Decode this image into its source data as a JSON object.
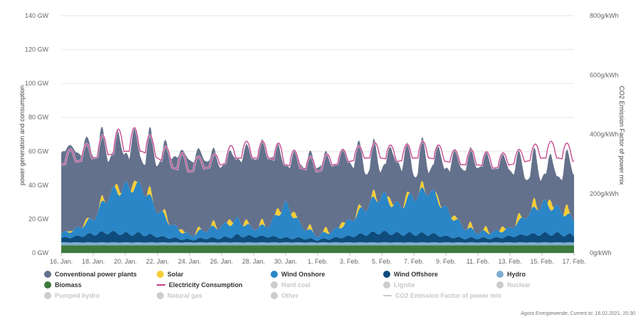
{
  "chart_data": {
    "type": "area",
    "xlabel": "",
    "ylabel": "power generation and consumption",
    "ylabel_right": "CO2 Emission Factor of power mix",
    "ylim": [
      0,
      140
    ],
    "ylim_right": [
      0,
      800
    ],
    "yticks": [
      "0 GW",
      "20 GW",
      "40 GW",
      "60 GW",
      "80 GW",
      "100 GW",
      "120 GW",
      "140 GW"
    ],
    "yticks_right": [
      "0g/kWh",
      "200g/kWh",
      "400g/kWh",
      "600g/kWh",
      "800g/kWh"
    ],
    "x_labels": [
      "16. Jan.",
      "18. Jan.",
      "20. Jan.",
      "22. Jan.",
      "24. Jan.",
      "26. Jan.",
      "28. Jan.",
      "30. Jan.",
      "1. Feb.",
      "3. Feb.",
      "5. Feb.",
      "7. Feb.",
      "9. Feb.",
      "11. Feb.",
      "13. Feb.",
      "15. Feb.",
      "17. Feb."
    ],
    "x_days": [
      0,
      2,
      4,
      6,
      8,
      10,
      12,
      14,
      16,
      18,
      20,
      22,
      24,
      26,
      28,
      30,
      32
    ],
    "x_range_days": [
      0,
      32
    ],
    "days": [
      0,
      1,
      2,
      3,
      4,
      5,
      6,
      7,
      8,
      9,
      10,
      11,
      12,
      13,
      14,
      15,
      16,
      17,
      18,
      19,
      20,
      21,
      22,
      23,
      24,
      25,
      26,
      27,
      28,
      29,
      30,
      31,
      32
    ],
    "grid": true,
    "stacking": "normal",
    "series": [
      {
        "name": "Biomass",
        "color": "#3d7a3d",
        "peak": [
          4.5,
          4.5,
          4.5,
          4.5,
          4.5,
          4.5,
          4.5,
          4.5,
          4.5,
          4.5,
          4.5,
          4.5,
          4.5,
          4.5,
          4.5,
          4.5,
          4.5,
          4.5,
          4.5,
          4.5,
          4.5,
          4.5,
          4.5,
          4.5,
          4.5,
          4.5,
          4.5,
          4.5,
          4.5,
          4.5,
          4.5,
          4.5,
          4.5
        ],
        "trough": [
          4.5,
          4.5,
          4.5,
          4.5,
          4.5,
          4.5,
          4.5,
          4.5,
          4.5,
          4.5,
          4.5,
          4.5,
          4.5,
          4.5,
          4.5,
          4.5,
          4.5,
          4.5,
          4.5,
          4.5,
          4.5,
          4.5,
          4.5,
          4.5,
          4.5,
          4.5,
          4.5,
          4.5,
          4.5,
          4.5,
          4.5,
          4.5,
          4.5
        ]
      },
      {
        "name": "Hydro",
        "color": "#7fadd0",
        "peak": [
          1.8,
          1.8,
          1.8,
          1.8,
          1.8,
          1.8,
          1.8,
          1.8,
          1.8,
          1.8,
          1.8,
          1.8,
          1.8,
          1.8,
          1.8,
          1.8,
          1.8,
          1.8,
          1.8,
          1.8,
          1.8,
          1.8,
          1.8,
          1.8,
          1.8,
          1.8,
          1.8,
          1.8,
          1.8,
          1.8,
          1.8,
          1.8,
          1.8
        ],
        "trough": [
          1.6,
          1.6,
          1.6,
          1.6,
          1.6,
          1.6,
          1.6,
          1.6,
          1.6,
          1.6,
          1.6,
          1.6,
          1.6,
          1.6,
          1.6,
          1.6,
          1.6,
          1.6,
          1.6,
          1.6,
          1.6,
          1.6,
          1.6,
          1.6,
          1.6,
          1.6,
          1.6,
          1.6,
          1.6,
          1.6,
          1.6,
          1.6,
          1.6
        ]
      },
      {
        "name": "Wind Offshore",
        "color": "#0e4c7d",
        "peak": [
          3,
          4,
          6,
          7,
          6,
          6,
          4,
          3,
          2,
          3,
          3,
          5,
          4,
          4,
          3,
          3,
          2,
          3,
          4,
          6,
          7,
          6,
          6,
          6,
          4,
          3,
          3,
          3,
          4,
          5,
          6,
          6,
          5
        ],
        "trough": [
          2,
          3,
          4,
          5,
          4,
          4,
          3,
          2,
          1,
          2,
          2,
          3,
          3,
          3,
          2,
          2,
          1,
          2,
          3,
          4,
          5,
          4,
          4,
          4,
          3,
          2,
          2,
          2,
          3,
          4,
          4,
          4,
          3
        ]
      },
      {
        "name": "Wind Onshore",
        "color": "#2a86c7",
        "peak": [
          3,
          5,
          10,
          25,
          30,
          30,
          18,
          8,
          3,
          6,
          8,
          10,
          5,
          8,
          22,
          8,
          3,
          5,
          10,
          18,
          24,
          18,
          25,
          28,
          18,
          8,
          4,
          4,
          5,
          12,
          20,
          16,
          10
        ],
        "trough": [
          2,
          4,
          8,
          20,
          25,
          26,
          14,
          6,
          2,
          4,
          6,
          8,
          4,
          6,
          18,
          6,
          2,
          4,
          8,
          14,
          20,
          14,
          20,
          24,
          14,
          6,
          3,
          3,
          4,
          10,
          16,
          14,
          8
        ]
      },
      {
        "name": "Solar",
        "color": "#f5cd36",
        "peak": [
          0,
          2,
          3,
          4,
          6,
          5,
          5,
          3,
          2,
          3,
          4,
          4,
          3,
          4,
          5,
          3,
          3,
          4,
          3,
          4,
          5,
          4,
          5,
          3,
          3,
          3,
          4,
          3,
          4,
          5,
          6,
          6,
          7
        ],
        "trough": [
          0,
          0,
          0,
          0,
          0,
          0,
          0,
          0,
          0,
          0,
          0,
          0,
          0,
          0,
          0,
          0,
          0,
          0,
          0,
          0,
          0,
          0,
          0,
          0,
          0,
          0,
          0,
          0,
          0,
          0,
          0,
          0,
          0
        ]
      },
      {
        "name": "Conventional power plants",
        "color": "#64718c",
        "peak": [
          52,
          50,
          47,
          35,
          31,
          32,
          38,
          46,
          48,
          45,
          41,
          41,
          47,
          47,
          31,
          41,
          46,
          44,
          43,
          34,
          27,
          34,
          26,
          26,
          35,
          43,
          45,
          44,
          42,
          33,
          27,
          28,
          36
        ],
        "trough": [
          48,
          44,
          38,
          22,
          17,
          16,
          28,
          40,
          44,
          42,
          35,
          35,
          42,
          40,
          21,
          36,
          41,
          38,
          34,
          22,
          15,
          24,
          14,
          13,
          22,
          34,
          39,
          37,
          34,
          23,
          15,
          17,
          28
        ]
      }
    ],
    "consumption": {
      "name": "Electricity Consumption",
      "color": "#c2418c",
      "peak": [
        60,
        62,
        66,
        72,
        74,
        74,
        66,
        60,
        58,
        56,
        60,
        66,
        66,
        66,
        64,
        58,
        56,
        60,
        62,
        64,
        66,
        62,
        66,
        66,
        62,
        60,
        62,
        58,
        60,
        62,
        66,
        66,
        64
      ],
      "trough": [
        52,
        54,
        56,
        58,
        60,
        60,
        56,
        50,
        48,
        50,
        52,
        56,
        56,
        56,
        52,
        50,
        48,
        52,
        54,
        56,
        56,
        54,
        56,
        56,
        54,
        52,
        52,
        50,
        52,
        54,
        56,
        56,
        54
      ]
    }
  },
  "legend": [
    {
      "label": "Conventional power plants",
      "color": "#64718c",
      "symbol": "dot",
      "active": true
    },
    {
      "label": "Solar",
      "color": "#f5cd36",
      "symbol": "dot",
      "active": true
    },
    {
      "label": "Wind Onshore",
      "color": "#2a86c7",
      "symbol": "dot",
      "active": true
    },
    {
      "label": "Wind Offshore",
      "color": "#0e4c7d",
      "symbol": "dot",
      "active": true
    },
    {
      "label": "Hydro",
      "color": "#7fadd0",
      "symbol": "dot",
      "active": true
    },
    {
      "label": "Biomass",
      "color": "#3d7a3d",
      "symbol": "dot",
      "active": true
    },
    {
      "label": "Electricity Consumption",
      "color": "#c2418c",
      "symbol": "line",
      "active": true
    },
    {
      "label": "Hard coal",
      "color": "#cccccc",
      "symbol": "dot",
      "active": false
    },
    {
      "label": "Lignite",
      "color": "#cccccc",
      "symbol": "dot",
      "active": false
    },
    {
      "label": "Nuclear",
      "color": "#cccccc",
      "symbol": "dot",
      "active": false
    },
    {
      "label": "Pumped hydro",
      "color": "#cccccc",
      "symbol": "dot",
      "active": false
    },
    {
      "label": "Natural gas",
      "color": "#cccccc",
      "symbol": "dot",
      "active": false
    },
    {
      "label": "Other",
      "color": "#cccccc",
      "symbol": "dot",
      "active": false
    },
    {
      "label": "CO2 Emission Factor of power mix",
      "color": "#cccccc",
      "symbol": "line",
      "active": false
    }
  ],
  "source": "Agora Energiewende; Current to: 16.02.2021, 20:30"
}
